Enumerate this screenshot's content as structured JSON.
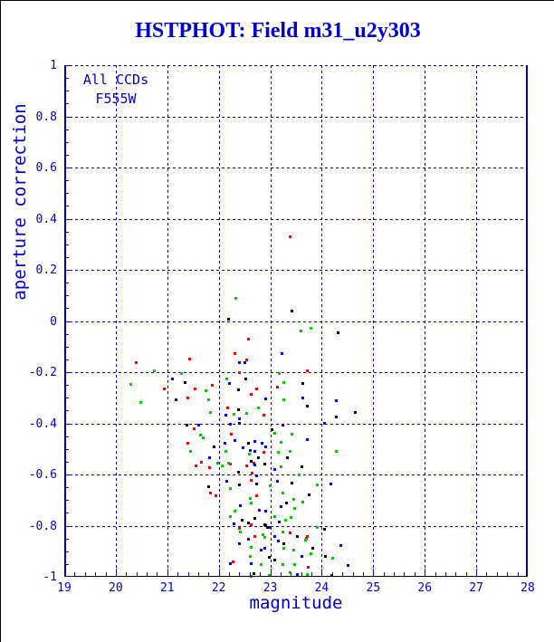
{
  "title": "HSTPHOT: Field m31_u2y303",
  "annotations": {
    "line1": "All CCDs",
    "line2": "F555W"
  },
  "colors": {
    "title_text": "#0000cc",
    "axis_frame": "#0000bb",
    "grid": "#0000bb",
    "tick_text": "#0000cc",
    "frame_bottom": "#000000",
    "series_red": "#ff0000",
    "series_green": "#00cc00",
    "series_blue": "#0000ff",
    "series_black": "#000000"
  },
  "chart_data": {
    "type": "scatter",
    "title": "HSTPHOT: Field m31_u2y303",
    "xlabel": "magnitude",
    "ylabel": "aperture correction",
    "xlim": [
      19,
      28
    ],
    "ylim": [
      -1,
      1
    ],
    "grid": "dashed blue gridlines at major ticks, dashed top frame",
    "legend_position": "none",
    "x_major_ticks": [
      19,
      20,
      21,
      22,
      23,
      24,
      25,
      26,
      27,
      28
    ],
    "x_tick_labels": [
      "19",
      "20",
      "21",
      "22",
      "23",
      "24",
      "25",
      "26",
      "27",
      "28"
    ],
    "x_minor_step": 0.2,
    "y_major_ticks": [
      1,
      0.8,
      0.6,
      0.4,
      0.2,
      0,
      -0.2,
      -0.4,
      -0.6,
      -0.8,
      -1
    ],
    "y_tick_labels": [
      "1",
      "0.8",
      "0.6",
      "0.4",
      "0.2",
      "0",
      "-0.2",
      "-0.4",
      "-0.6",
      "-0.8",
      "-1"
    ],
    "y_minor_step": 0.05,
    "series": [
      {
        "name": "red",
        "color": "#ff0000",
        "points": [
          [
            23.38,
            0.33
          ],
          [
            22.56,
            -0.069
          ],
          [
            22.3,
            -0.126
          ],
          [
            21.42,
            -0.147
          ],
          [
            22.53,
            -0.152
          ],
          [
            20.39,
            -0.161
          ],
          [
            23.71,
            -0.193
          ],
          [
            22.39,
            -0.2
          ],
          [
            21.87,
            -0.249
          ],
          [
            20.94,
            -0.264
          ],
          [
            21.53,
            -0.264
          ],
          [
            22.73,
            -0.264
          ],
          [
            23.13,
            -0.257
          ],
          [
            21.39,
            -0.3
          ],
          [
            22.62,
            -0.285
          ],
          [
            22.16,
            -0.338
          ],
          [
            22.86,
            -0.366
          ],
          [
            21.51,
            -0.419
          ],
          [
            22.24,
            -0.44
          ],
          [
            21.39,
            -0.476
          ],
          [
            22.86,
            -0.512
          ],
          [
            21.66,
            -0.55
          ],
          [
            22.67,
            -0.554
          ],
          [
            21.55,
            -0.565
          ],
          [
            21.81,
            -0.572
          ],
          [
            22.22,
            -0.558
          ],
          [
            22.53,
            -0.565
          ],
          [
            22.64,
            -0.593
          ],
          [
            21.83,
            -0.671
          ],
          [
            21.94,
            -0.681
          ],
          [
            22.62,
            -0.621
          ],
          [
            22.73,
            -0.681
          ],
          [
            22.62,
            -0.795
          ],
          [
            23.38,
            -0.827
          ],
          [
            23.71,
            -0.84
          ],
          [
            22.39,
            -0.809
          ],
          [
            22.7,
            -0.84
          ],
          [
            23.7,
            -0.848
          ],
          [
            22.27,
            -0.94
          ],
          [
            23.73,
            -0.96
          ]
        ]
      },
      {
        "name": "green",
        "color": "#00cc00",
        "points": [
          [
            22.33,
            0.09
          ],
          [
            23.58,
            -0.037
          ],
          [
            23.79,
            -0.026
          ],
          [
            20.74,
            -0.193
          ],
          [
            21.27,
            -0.203
          ],
          [
            23.16,
            -0.203
          ],
          [
            20.28,
            -0.246
          ],
          [
            22.15,
            -0.225
          ],
          [
            23.25,
            -0.239
          ],
          [
            21.75,
            -0.271
          ],
          [
            20.47,
            -0.317
          ],
          [
            21.8,
            -0.306
          ],
          [
            23.25,
            -0.306
          ],
          [
            21.83,
            -0.356
          ],
          [
            22.53,
            -0.36
          ],
          [
            22.28,
            -0.362
          ],
          [
            22.76,
            -0.338
          ],
          [
            21.64,
            -0.444
          ],
          [
            21.69,
            -0.455
          ],
          [
            21.45,
            -0.508
          ],
          [
            22.13,
            -0.508
          ],
          [
            22.58,
            -0.518
          ],
          [
            23.07,
            -0.437
          ],
          [
            23.15,
            -0.512
          ],
          [
            23.2,
            -0.472
          ],
          [
            23.42,
            -0.44
          ],
          [
            23.38,
            -0.508
          ],
          [
            24.28,
            -0.508
          ],
          [
            21.97,
            -0.554
          ],
          [
            22.18,
            -0.554
          ],
          [
            22.06,
            -0.565
          ],
          [
            23.2,
            -0.568
          ],
          [
            23.55,
            -0.6
          ],
          [
            22.22,
            -0.653
          ],
          [
            22.6,
            -0.692
          ],
          [
            22.99,
            -0.642
          ],
          [
            23.23,
            -0.671
          ],
          [
            23.9,
            -0.639
          ],
          [
            23.44,
            -0.695
          ],
          [
            22.22,
            -0.763
          ],
          [
            22.3,
            -0.741
          ],
          [
            22.62,
            -0.71
          ],
          [
            23.46,
            -0.731
          ],
          [
            23.62,
            -0.706
          ],
          [
            23.4,
            -0.766
          ],
          [
            23.29,
            -0.777
          ],
          [
            23.07,
            -0.763
          ],
          [
            23.23,
            -0.823
          ],
          [
            23.9,
            -0.806
          ],
          [
            22.85,
            -0.834
          ],
          [
            22.41,
            -0.823
          ],
          [
            22.88,
            -0.844
          ],
          [
            23.67,
            -0.855
          ],
          [
            22.62,
            -0.883
          ],
          [
            23.25,
            -0.887
          ],
          [
            23.44,
            -0.894
          ],
          [
            23.79,
            -0.908
          ],
          [
            24.21,
            -0.926
          ],
          [
            22.6,
            -0.919
          ],
          [
            22.81,
            -0.95
          ],
          [
            23.23,
            -0.95
          ],
          [
            23.38,
            -0.982
          ],
          [
            23.46,
            -0.95
          ],
          [
            23.71,
            -0.989
          ],
          [
            22.62,
            -0.996
          ],
          [
            22.97,
            -0.993
          ]
        ]
      },
      {
        "name": "blue",
        "color": "#0000ff",
        "points": [
          [
            23.22,
            -0.126
          ],
          [
            22.39,
            -0.161
          ],
          [
            22.5,
            -0.16
          ],
          [
            21.1,
            -0.225
          ],
          [
            22.2,
            -0.242
          ],
          [
            21.16,
            -0.306
          ],
          [
            22.91,
            -0.303
          ],
          [
            23.62,
            -0.3
          ],
          [
            24.27,
            -0.31
          ],
          [
            22.13,
            -0.366
          ],
          [
            22.39,
            -0.38
          ],
          [
            21.6,
            -0.405
          ],
          [
            22.22,
            -0.4
          ],
          [
            23.23,
            -0.405
          ],
          [
            24.04,
            -0.397
          ],
          [
            21.82,
            -0.533
          ],
          [
            22.11,
            -0.476
          ],
          [
            22.3,
            -0.465
          ],
          [
            22.46,
            -0.494
          ],
          [
            22.6,
            -0.504
          ],
          [
            22.69,
            -0.469
          ],
          [
            22.7,
            -0.508
          ],
          [
            22.83,
            -0.476
          ],
          [
            22.91,
            -0.49
          ],
          [
            23.71,
            -0.462
          ],
          [
            22.7,
            -0.561
          ],
          [
            23.07,
            -0.579
          ],
          [
            22.73,
            -0.604
          ],
          [
            22.15,
            -0.625
          ],
          [
            23.13,
            -0.625
          ],
          [
            24.16,
            -0.635
          ],
          [
            22.41,
            -0.72
          ],
          [
            22.78,
            -0.738
          ],
          [
            22.9,
            -0.741
          ],
          [
            23.2,
            -0.724
          ],
          [
            22.28,
            -0.791
          ],
          [
            22.97,
            -0.806
          ],
          [
            23.16,
            -0.784
          ],
          [
            23.07,
            -0.84
          ],
          [
            22.56,
            -0.851
          ],
          [
            22.39,
            -0.869
          ],
          [
            23.15,
            -0.858
          ],
          [
            22.88,
            -0.887
          ],
          [
            22.81,
            -0.894
          ],
          [
            24.36,
            -0.876
          ],
          [
            23.6,
            -0.919
          ],
          [
            22.22,
            -0.947
          ],
          [
            22.62,
            -0.947
          ],
          [
            24.5,
            -0.954
          ],
          [
            23.51,
            -0.989
          ],
          [
            24.19,
            -0.993
          ]
        ]
      },
      {
        "name": "black",
        "color": "#000000",
        "points": [
          [
            23.42,
            0.041
          ],
          [
            22.18,
            0.009
          ],
          [
            24.3,
            -0.044
          ],
          [
            21.34,
            -0.239
          ],
          [
            22.51,
            -0.225
          ],
          [
            23.62,
            -0.242
          ],
          [
            22.37,
            -0.267
          ],
          [
            23.71,
            -0.33
          ],
          [
            22.37,
            -0.345
          ],
          [
            24.27,
            -0.373
          ],
          [
            24.65,
            -0.356
          ],
          [
            21.37,
            -0.405
          ],
          [
            22.39,
            -0.397
          ],
          [
            21.9,
            -0.49
          ],
          [
            22.56,
            -0.476
          ],
          [
            22.76,
            -0.533
          ],
          [
            23.02,
            -0.423
          ],
          [
            23.32,
            -0.533
          ],
          [
            22.62,
            -0.547
          ],
          [
            22.88,
            -0.558
          ],
          [
            23.6,
            -0.568
          ],
          [
            22.37,
            -0.59
          ],
          [
            21.8,
            -0.646
          ],
          [
            22.39,
            -0.639
          ],
          [
            22.73,
            -0.635
          ],
          [
            23.42,
            -0.632
          ],
          [
            23.74,
            -0.678
          ],
          [
            23.3,
            -0.71
          ],
          [
            22.44,
            -0.777
          ],
          [
            22.56,
            -0.787
          ],
          [
            22.7,
            -0.77
          ],
          [
            22.88,
            -0.795
          ],
          [
            22.9,
            -0.799
          ],
          [
            22.93,
            -0.806
          ],
          [
            24.05,
            -0.813
          ],
          [
            23.51,
            -0.84
          ],
          [
            23.26,
            -0.869
          ],
          [
            23.81,
            -0.887
          ],
          [
            24.07,
            -0.919
          ],
          [
            22.97,
            -0.922
          ],
          [
            23.07,
            -0.933
          ],
          [
            22.67,
            -0.986
          ]
        ]
      }
    ]
  }
}
